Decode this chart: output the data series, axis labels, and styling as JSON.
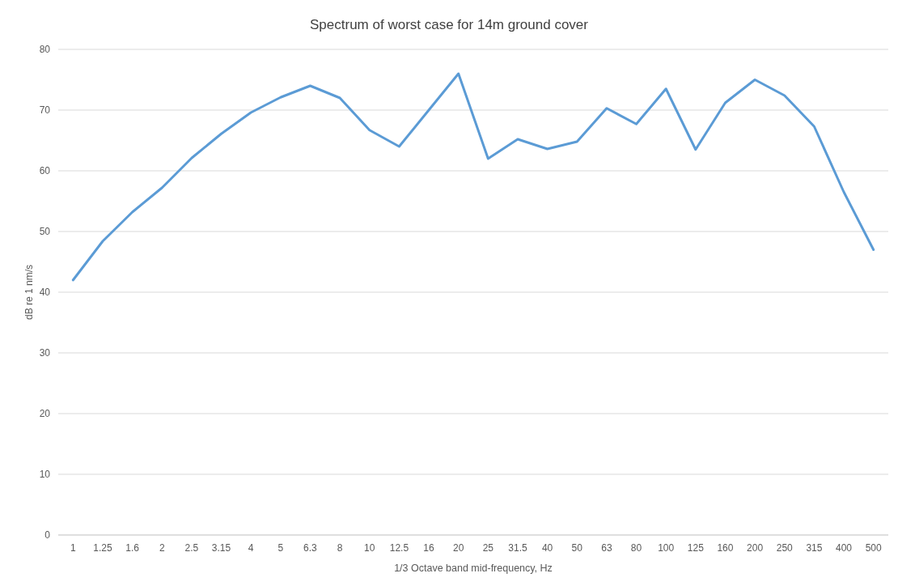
{
  "chart_data": {
    "type": "line",
    "title": "Spectrum of worst case for 14m ground cover",
    "xlabel": "1/3 Octave band mid-frequency, Hz",
    "ylabel": "dB re 1 nm/s",
    "categories": [
      "1",
      "1.25",
      "1.6",
      "2",
      "2.5",
      "3.15",
      "4",
      "5",
      "6.3",
      "8",
      "10",
      "12.5",
      "16",
      "20",
      "25",
      "31.5",
      "40",
      "50",
      "63",
      "80",
      "100",
      "125",
      "160",
      "200",
      "250",
      "315",
      "400",
      "500"
    ],
    "series": [
      {
        "color": "#5b9bd5",
        "values": [
          42,
          48.4,
          53.2,
          57.2,
          62.1,
          66.1,
          69.6,
          72.1,
          74,
          72,
          66.7,
          64,
          70,
          76,
          62,
          65.2,
          63.6,
          64.8,
          70.3,
          67.7,
          73.5,
          63.5,
          71.2,
          75,
          72.4,
          67.3,
          56.5,
          47
        ]
      }
    ],
    "ylim": [
      0,
      80
    ],
    "yticks": [
      0,
      10,
      20,
      30,
      40,
      50,
      60,
      70,
      80
    ],
    "grid": "y",
    "marker": "none",
    "line_style": "solid"
  }
}
